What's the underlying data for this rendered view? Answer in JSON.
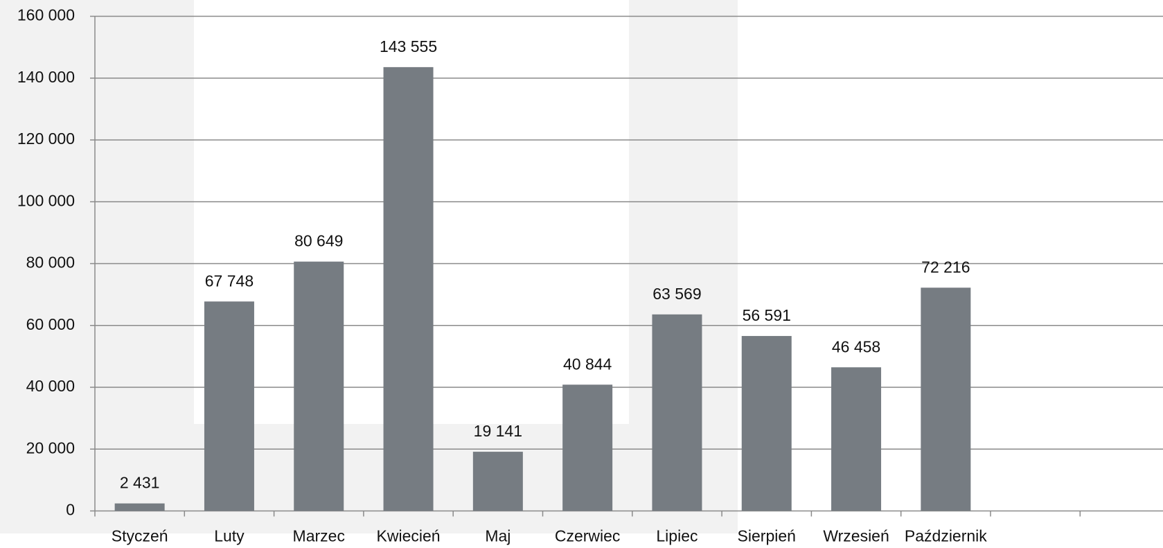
{
  "chart_data": {
    "type": "bar",
    "categories": [
      "Styczeń",
      "Luty",
      "Marzec",
      "Kwiecień",
      "Maj",
      "Czerwiec",
      "Lipiec",
      "Sierpień",
      "Wrzesień",
      "Październik",
      null,
      null
    ],
    "values": [
      2431,
      67748,
      80649,
      143555,
      19141,
      40844,
      63569,
      56591,
      46458,
      72216,
      null,
      null
    ],
    "value_labels": [
      "2 431",
      "67 748",
      "80 649",
      "143 555",
      "19 141",
      "40 844",
      "63 569",
      "56 591",
      "46 458",
      "72 216",
      null,
      null
    ],
    "color": "#767c82",
    "ylim": [
      0,
      160000
    ],
    "yticks": [
      0,
      {
        "value": 20000,
        "label": "20 000"
      },
      {
        "value": 40000,
        "label": "40 000"
      },
      {
        "value": 60000,
        "label": "60 000"
      },
      {
        "value": 80000,
        "label": "80 000"
      },
      {
        "value": 100000,
        "label": "100 000"
      },
      {
        "value": 120000,
        "label": "120 000"
      },
      {
        "value": 140000,
        "label": "140 000"
      },
      {
        "value": 160000,
        "label": "160 000"
      }
    ],
    "grid": true
  }
}
